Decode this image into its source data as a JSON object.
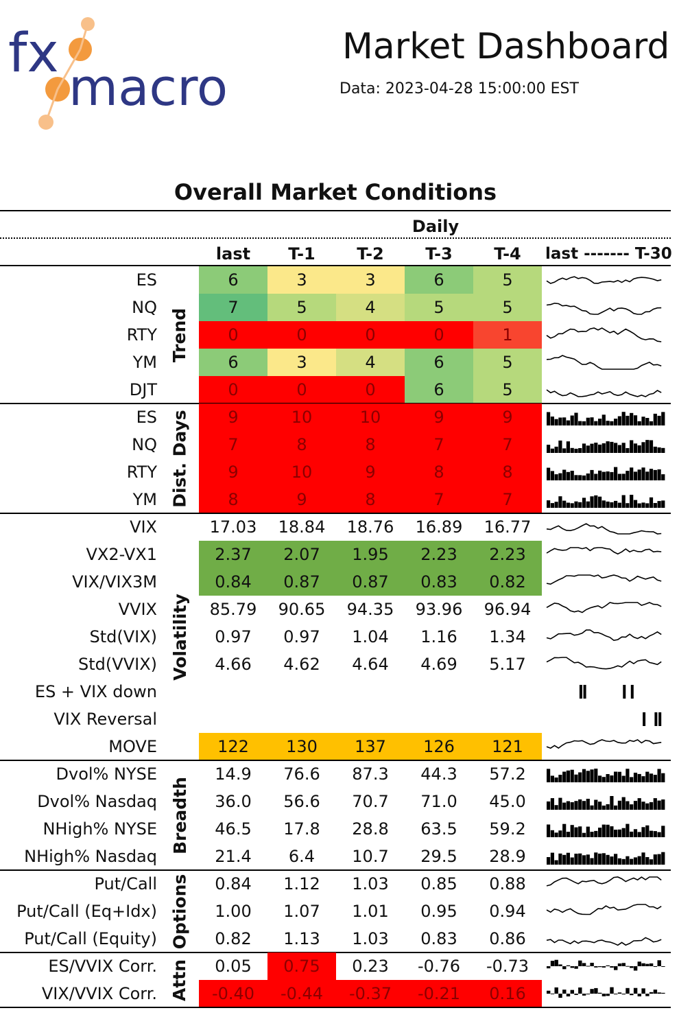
{
  "brand": {
    "name": "fxmacro",
    "part1": "fx",
    "part2": "macro"
  },
  "header": {
    "title": "Market Dashboard",
    "date": "Data: 2023-04-28 15:00:00 EST"
  },
  "section_title": "Overall Market Conditions",
  "period_label": "Daily",
  "columns": [
    "last",
    "T-1",
    "T-2",
    "T-3",
    "T-4"
  ],
  "spark_header": "last ------- T-30",
  "groups": [
    {
      "name": "Trend",
      "rows": [
        {
          "label": "ES",
          "values": [
            "6",
            "3",
            "3",
            "6",
            "5"
          ],
          "colors": [
            "#8ccb78",
            "#fbe88a",
            "#fbe88a",
            "#8ccb78",
            "#b6d97c"
          ],
          "spark": "line"
        },
        {
          "label": "NQ",
          "values": [
            "7",
            "5",
            "4",
            "5",
            "5"
          ],
          "colors": [
            "#63be7b",
            "#b6d97c",
            "#d5df82",
            "#b6d97c",
            "#b6d97c"
          ],
          "spark": "line"
        },
        {
          "label": "RTY",
          "values": [
            "0",
            "0",
            "0",
            "0",
            "1"
          ],
          "colors": [
            "#ff0000",
            "#ff0000",
            "#ff0000",
            "#ff0000",
            "#f8452f"
          ],
          "spark": "line"
        },
        {
          "label": "YM",
          "values": [
            "6",
            "3",
            "4",
            "6",
            "5"
          ],
          "colors": [
            "#8ccb78",
            "#fbe88a",
            "#d5df82",
            "#8ccb78",
            "#b6d97c"
          ],
          "spark": "line"
        },
        {
          "label": "DJT",
          "values": [
            "0",
            "0",
            "0",
            "6",
            "5"
          ],
          "colors": [
            "#ff0000",
            "#ff0000",
            "#ff0000",
            "#8ccb78",
            "#b6d97c"
          ],
          "spark": "line"
        }
      ]
    },
    {
      "name": "Dist. Days",
      "rows": [
        {
          "label": "ES",
          "values": [
            "9",
            "10",
            "10",
            "9",
            "9"
          ],
          "colors": [
            "#ff0000",
            "#ff0000",
            "#ff0000",
            "#ff0000",
            "#ff0000"
          ],
          "spark": "bar"
        },
        {
          "label": "NQ",
          "values": [
            "7",
            "8",
            "8",
            "7",
            "7"
          ],
          "colors": [
            "#ff0000",
            "#ff0000",
            "#ff0000",
            "#ff0000",
            "#ff0000"
          ],
          "spark": "bar"
        },
        {
          "label": "RTY",
          "values": [
            "9",
            "10",
            "9",
            "8",
            "8"
          ],
          "colors": [
            "#ff0000",
            "#ff0000",
            "#ff0000",
            "#ff0000",
            "#ff0000"
          ],
          "spark": "bar"
        },
        {
          "label": "YM",
          "values": [
            "8",
            "9",
            "8",
            "7",
            "7"
          ],
          "colors": [
            "#ff0000",
            "#ff0000",
            "#ff0000",
            "#ff0000",
            "#ff0000"
          ],
          "spark": "bar"
        }
      ]
    },
    {
      "name": "Volatility",
      "rows": [
        {
          "label": "VIX",
          "values": [
            "17.03",
            "18.84",
            "18.76",
            "16.89",
            "16.77"
          ],
          "colors": [
            null,
            null,
            null,
            null,
            null
          ],
          "spark": "line"
        },
        {
          "label": "VX2-VX1",
          "values": [
            "2.37",
            "2.07",
            "1.95",
            "2.23",
            "2.23"
          ],
          "colors": [
            "#70ad47",
            "#70ad47",
            "#70ad47",
            "#70ad47",
            "#70ad47"
          ],
          "spark": "line"
        },
        {
          "label": "VIX/VIX3M",
          "values": [
            "0.84",
            "0.87",
            "0.87",
            "0.83",
            "0.82"
          ],
          "colors": [
            "#70ad47",
            "#70ad47",
            "#70ad47",
            "#70ad47",
            "#70ad47"
          ],
          "spark": "line"
        },
        {
          "label": "VVIX",
          "values": [
            "85.79",
            "90.65",
            "94.35",
            "93.96",
            "96.94"
          ],
          "colors": [
            null,
            null,
            null,
            null,
            null
          ],
          "spark": "line"
        },
        {
          "label": "Std(VIX)",
          "values": [
            "0.97",
            "0.97",
            "1.04",
            "1.16",
            "1.34"
          ],
          "colors": [
            null,
            null,
            null,
            null,
            null
          ],
          "spark": "line"
        },
        {
          "label": "Std(VVIX)",
          "values": [
            "4.66",
            "4.62",
            "4.64",
            "4.69",
            "5.17"
          ],
          "colors": [
            null,
            null,
            null,
            null,
            null
          ],
          "spark": "line"
        },
        {
          "label": "ES + VIX down",
          "values": [
            "",
            "",
            "",
            "",
            ""
          ],
          "colors": [
            null,
            null,
            null,
            null,
            null
          ],
          "spark": "event"
        },
        {
          "label": "VIX Reversal",
          "values": [
            "",
            "",
            "",
            "",
            ""
          ],
          "colors": [
            null,
            null,
            null,
            null,
            null
          ],
          "spark": "event"
        },
        {
          "label": "MOVE",
          "values": [
            "122",
            "130",
            "137",
            "126",
            "121"
          ],
          "colors": [
            "#ffc000",
            "#ffc000",
            "#ffc000",
            "#ffc000",
            "#ffc000"
          ],
          "spark": "line"
        }
      ]
    },
    {
      "name": "Breadth",
      "rows": [
        {
          "label": "Dvol% NYSE",
          "values": [
            "14.9",
            "76.6",
            "87.3",
            "44.3",
            "57.2"
          ],
          "colors": [
            null,
            null,
            null,
            null,
            null
          ],
          "spark": "bar"
        },
        {
          "label": "Dvol% Nasdaq",
          "values": [
            "36.0",
            "56.6",
            "70.7",
            "71.0",
            "45.0"
          ],
          "colors": [
            null,
            null,
            null,
            null,
            null
          ],
          "spark": "bar"
        },
        {
          "label": "NHigh% NYSE",
          "values": [
            "46.5",
            "17.8",
            "28.8",
            "63.5",
            "59.2"
          ],
          "colors": [
            null,
            null,
            null,
            null,
            null
          ],
          "spark": "bar"
        },
        {
          "label": "NHigh% Nasdaq",
          "values": [
            "21.4",
            "6.4",
            "10.7",
            "29.5",
            "28.9"
          ],
          "colors": [
            null,
            null,
            null,
            null,
            null
          ],
          "spark": "bar"
        }
      ]
    },
    {
      "name": "Options",
      "rows": [
        {
          "label": "Put/Call",
          "values": [
            "0.84",
            "1.12",
            "1.03",
            "0.85",
            "0.88"
          ],
          "colors": [
            null,
            null,
            null,
            null,
            null
          ],
          "spark": "line"
        },
        {
          "label": "Put/Call (Eq+Idx)",
          "values": [
            "1.00",
            "1.07",
            "1.01",
            "0.95",
            "0.94"
          ],
          "colors": [
            null,
            null,
            null,
            null,
            null
          ],
          "spark": "line"
        },
        {
          "label": "Put/Call (Equity)",
          "values": [
            "0.82",
            "1.13",
            "1.03",
            "0.83",
            "0.86"
          ],
          "colors": [
            null,
            null,
            null,
            null,
            null
          ],
          "spark": "line"
        }
      ]
    },
    {
      "name": "Attn",
      "rows": [
        {
          "label": "ES/VVIX Corr.",
          "values": [
            "0.05",
            "0.75",
            "0.23",
            "-0.76",
            "-0.73"
          ],
          "colors": [
            null,
            "#ff0000",
            null,
            null,
            null
          ],
          "spark": "bipolar"
        },
        {
          "label": "VIX/VVIX Corr.",
          "values": [
            "-0.40",
            "-0.44",
            "-0.37",
            "-0.21",
            "0.16"
          ],
          "colors": [
            "#ff0000",
            "#ff0000",
            "#ff0000",
            "#ff0000",
            "#ff0000"
          ],
          "spark": "bipolar"
        }
      ]
    }
  ]
}
